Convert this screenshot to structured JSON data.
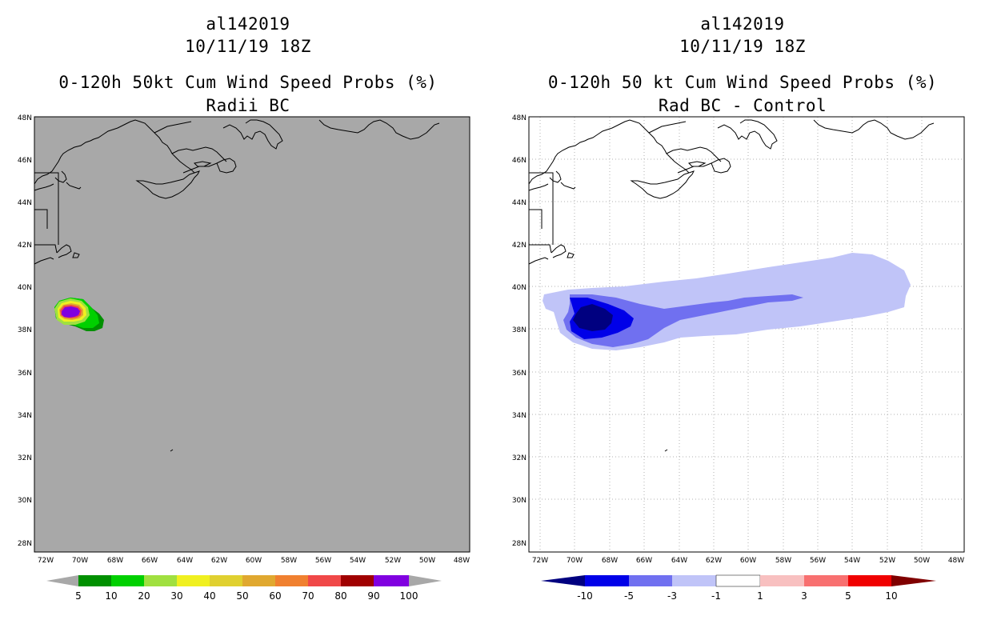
{
  "left_panel": {
    "storm_id": "al142019",
    "datetime": "10/11/19 18Z",
    "title": "0-120h 50kt Cum Wind Speed Probs (%)",
    "subtitle": "Radii BC",
    "colorbar": {
      "labels": [
        "5",
        "10",
        "20",
        "30",
        "40",
        "50",
        "60",
        "70",
        "80",
        "90",
        "100"
      ],
      "colors": [
        "#009000",
        "#00d000",
        "#a0e040",
        "#f0f020",
        "#e0d030",
        "#e0a830",
        "#f08030",
        "#f04848",
        "#a00000",
        "#8000e0"
      ]
    }
  },
  "right_panel": {
    "storm_id": "al142019",
    "datetime": "10/11/19 18Z",
    "title": "0-120h 50 kt Cum Wind Speed Probs (%)",
    "subtitle": "Rad BC - Control",
    "colorbar": {
      "labels": [
        "-10",
        "-5",
        "-3",
        "-1",
        "1",
        "3",
        "5",
        "10"
      ],
      "colors": [
        "#0000e8",
        "#7070f0",
        "#c0c4f8",
        "#ffffff",
        "#f8c0c0",
        "#f87070",
        "#f00000"
      ],
      "low_end_color": "#000080",
      "high_end_color": "#800000"
    }
  },
  "map": {
    "lat_labels": [
      "48N",
      "46N",
      "44N",
      "42N",
      "40N",
      "38N",
      "36N",
      "34N",
      "32N",
      "30N",
      "28N"
    ],
    "lon_labels": [
      "72W",
      "70W",
      "68W",
      "66W",
      "64W",
      "62W",
      "60W",
      "58W",
      "56W",
      "54W",
      "52W",
      "50W",
      "48W"
    ],
    "land_color": "#a8a8a8"
  }
}
